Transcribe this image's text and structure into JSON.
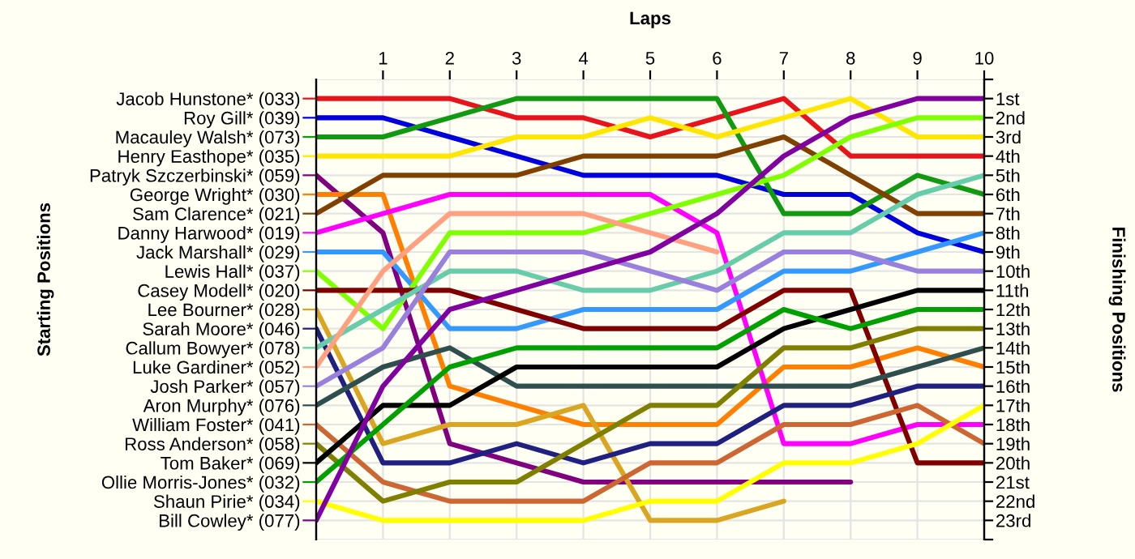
{
  "chart_data": {
    "type": "line",
    "xlabel": "Laps",
    "ylabel": "Finishing Positions",
    "annotations": [
      "Starting Positions"
    ],
    "x": [
      0,
      1,
      2,
      3,
      4,
      5,
      6,
      7,
      8,
      9,
      10
    ],
    "xlim": [
      0,
      10
    ],
    "xticks": [
      1,
      2,
      3,
      4,
      5,
      6,
      7,
      8,
      9,
      10
    ],
    "ylim": [
      24,
      0
    ],
    "yticks": [
      {
        "value": 0,
        "label": null
      },
      {
        "value": 1,
        "label": "1st"
      },
      {
        "value": 2,
        "label": "2nd"
      },
      {
        "value": 3,
        "label": "3rd"
      },
      {
        "value": 4,
        "label": "4th"
      },
      {
        "value": 5,
        "label": "5th"
      },
      {
        "value": 6,
        "label": "6th"
      },
      {
        "value": 7,
        "label": "7th"
      },
      {
        "value": 8,
        "label": "8th"
      },
      {
        "value": 9,
        "label": "9th"
      },
      {
        "value": 10,
        "label": "10th"
      },
      {
        "value": 11,
        "label": "11th"
      },
      {
        "value": 12,
        "label": "12th"
      },
      {
        "value": 13,
        "label": "13th"
      },
      {
        "value": 14,
        "label": "14th"
      },
      {
        "value": 15,
        "label": "15th"
      },
      {
        "value": 16,
        "label": "16th"
      },
      {
        "value": 17,
        "label": "17th"
      },
      {
        "value": 18,
        "label": "18th"
      },
      {
        "value": 19,
        "label": "19th"
      },
      {
        "value": 20,
        "label": "20th"
      },
      {
        "value": 21,
        "label": "21st"
      },
      {
        "value": 22,
        "label": "22nd"
      },
      {
        "value": 23,
        "label": "23rd"
      },
      {
        "value": 24,
        "label": null
      }
    ],
    "grid": true,
    "legend": "left",
    "marker": "none",
    "line_style": "solid",
    "series": [
      {
        "name": "Jacob Hunstone* (033)",
        "color": "#e8141c",
        "values": [
          1,
          1,
          1,
          2,
          2,
          3,
          2,
          1,
          4,
          4,
          4
        ]
      },
      {
        "name": "Roy Gill* (039)",
        "color": "#0000dd",
        "values": [
          2,
          2,
          3,
          4,
          5,
          5,
          5,
          6,
          6,
          8,
          9
        ]
      },
      {
        "name": "Macauley Walsh* (073)",
        "color": "#119911",
        "values": [
          3,
          3,
          2,
          1,
          1,
          1,
          1,
          7,
          7,
          5,
          6
        ]
      },
      {
        "name": "Henry Easthope* (035)",
        "color": "#ffe600",
        "values": [
          4,
          4,
          4,
          3,
          3,
          2,
          3,
          2,
          1,
          3,
          3
        ]
      },
      {
        "name": "Patryk Szczerbinski* (059)",
        "color": "#800080",
        "values": [
          5,
          8,
          19,
          20,
          21,
          21,
          21,
          21,
          21,
          null,
          null
        ]
      },
      {
        "name": "George Wright* (030)",
        "color": "#ff8000",
        "values": [
          6,
          6,
          16,
          17,
          18,
          18,
          18,
          15,
          15,
          14,
          15
        ]
      },
      {
        "name": "Sam Clarence* (021)",
        "color": "#804000",
        "values": [
          7,
          5,
          5,
          5,
          4,
          4,
          4,
          3,
          5,
          7,
          7
        ]
      },
      {
        "name": "Danny Harwood* (019)",
        "color": "#ff00ff",
        "values": [
          8,
          7,
          6,
          6,
          6,
          6,
          8,
          19,
          19,
          18,
          18
        ]
      },
      {
        "name": "Jack Marshall* (029)",
        "color": "#3399ff",
        "values": [
          9,
          9,
          13,
          13,
          12,
          12,
          12,
          10,
          10,
          9,
          8
        ]
      },
      {
        "name": "Lewis Hall* (037)",
        "color": "#80ff00",
        "values": [
          10,
          13,
          8,
          8,
          8,
          7,
          6,
          5,
          3,
          2,
          2
        ]
      },
      {
        "name": "Casey Modell* (020)",
        "color": "#800000",
        "values": [
          11,
          11,
          11,
          12,
          13,
          13,
          13,
          11,
          11,
          20,
          20
        ]
      },
      {
        "name": "Lee Bourner* (028)",
        "color": "#daa520",
        "values": [
          12,
          19,
          18,
          18,
          17,
          23,
          23,
          22,
          null,
          null,
          null
        ]
      },
      {
        "name": "Sarah Moore* (046)",
        "color": "#202080",
        "values": [
          13,
          20,
          20,
          19,
          20,
          19,
          19,
          17,
          17,
          16,
          16
        ]
      },
      {
        "name": "Callum Bowyer* (078)",
        "color": "#66ccaa",
        "values": [
          14,
          12,
          10,
          10,
          11,
          11,
          10,
          8,
          8,
          6,
          5
        ]
      },
      {
        "name": "Luke Gardiner* (052)",
        "color": "#ffa080",
        "values": [
          15,
          10,
          7,
          7,
          7,
          8,
          9,
          null,
          null,
          null,
          null
        ]
      },
      {
        "name": "Josh Parker* (057)",
        "color": "#9980dd",
        "values": [
          16,
          14,
          9,
          9,
          9,
          10,
          11,
          9,
          9,
          10,
          10
        ]
      },
      {
        "name": "Aron Murphy* (076)",
        "color": "#2f4f4f",
        "values": [
          17,
          15,
          14,
          16,
          16,
          16,
          16,
          16,
          16,
          15,
          14
        ]
      },
      {
        "name": "William Foster* (041)",
        "color": "#cc6633",
        "values": [
          18,
          21,
          22,
          22,
          22,
          20,
          20,
          18,
          18,
          17,
          19
        ]
      },
      {
        "name": "Ross Anderson* (058)",
        "color": "#808000",
        "values": [
          19,
          22,
          21,
          21,
          19,
          17,
          17,
          14,
          14,
          13,
          13
        ]
      },
      {
        "name": "Tom Baker* (069)",
        "color": "#000000",
        "values": [
          20,
          17,
          17,
          15,
          15,
          15,
          15,
          13,
          12,
          11,
          11
        ]
      },
      {
        "name": "Ollie Morris-Jones* (032)",
        "color": "#00a000",
        "values": [
          21,
          18,
          15,
          14,
          14,
          14,
          14,
          12,
          13,
          12,
          12
        ]
      },
      {
        "name": "Shaun Pirie* (034)",
        "color": "#ffff00",
        "values": [
          22,
          23,
          23,
          23,
          23,
          22,
          22,
          20,
          20,
          19,
          17
        ]
      },
      {
        "name": "Bill Cowley* (077)",
        "color": "#8000a0",
        "values": [
          23,
          16,
          12,
          11,
          10,
          9,
          7,
          4,
          2,
          1,
          1
        ]
      }
    ]
  }
}
